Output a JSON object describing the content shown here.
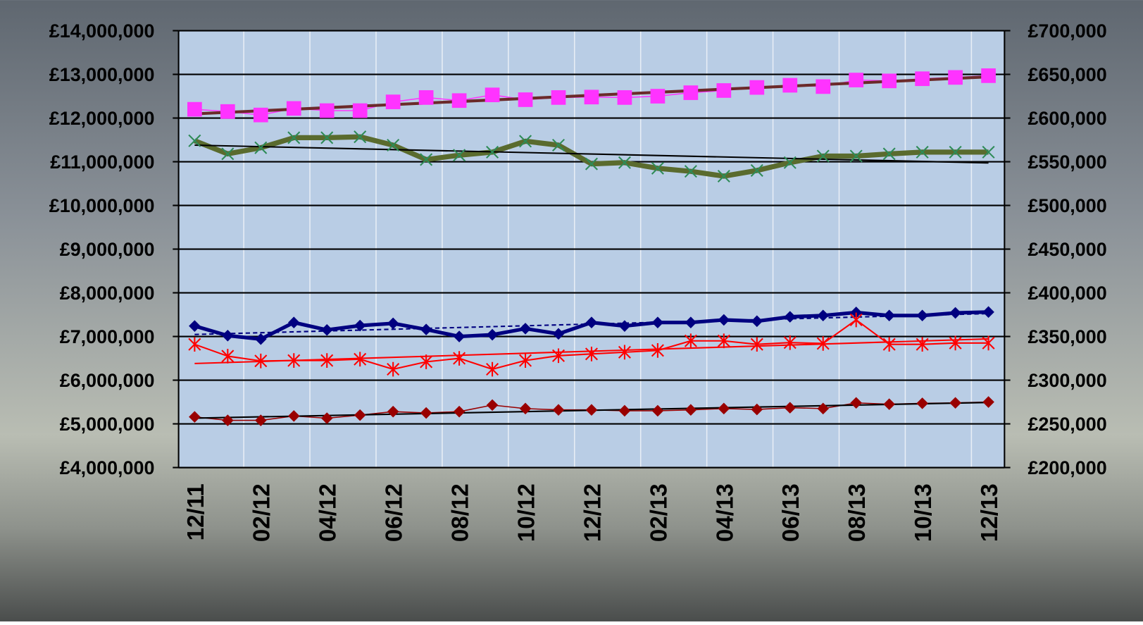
{
  "chart_data": {
    "type": "line",
    "categories": [
      "12/11",
      null,
      "02/12",
      null,
      "04/12",
      null,
      "06/12",
      null,
      "08/12",
      null,
      "10/12",
      null,
      "12/12",
      null,
      "02/13",
      null,
      "04/13",
      null,
      "06/13",
      null,
      "08/13",
      null,
      "10/13",
      null,
      "12/13"
    ],
    "ylim": [
      4000000,
      14000000
    ],
    "yticks": [
      {
        "value": 4000000,
        "label": "£4,000,000"
      },
      {
        "value": 5000000,
        "label": "£5,000,000"
      },
      {
        "value": 6000000,
        "label": "£6,000,000"
      },
      {
        "value": 7000000,
        "label": "£7,000,000"
      },
      {
        "value": 8000000,
        "label": "£8,000,000"
      },
      {
        "value": 9000000,
        "label": "£9,000,000"
      },
      {
        "value": 10000000,
        "label": "£10,000,000"
      },
      {
        "value": 11000000,
        "label": "£11,000,000"
      },
      {
        "value": 12000000,
        "label": "£12,000,000"
      },
      {
        "value": 13000000,
        "label": "£13,000,000"
      },
      {
        "value": 14000000,
        "label": "£14,000,000"
      }
    ],
    "y2lim": [
      200000,
      700000
    ],
    "y2ticks": [
      {
        "value": 200000,
        "label": "£200,000"
      },
      {
        "value": 250000,
        "label": "£250,000"
      },
      {
        "value": 300000,
        "label": "£300,000"
      },
      {
        "value": 350000,
        "label": "£350,000"
      },
      {
        "value": 400000,
        "label": "£400,000"
      },
      {
        "value": 450000,
        "label": "£450,000"
      },
      {
        "value": 500000,
        "label": "£500,000"
      },
      {
        "value": 550000,
        "label": "£550,000"
      },
      {
        "value": 600000,
        "label": "£600,000"
      },
      {
        "value": 650000,
        "label": "£650,000"
      },
      {
        "value": 700000,
        "label": "£700,000"
      }
    ],
    "grid": true,
    "series": [
      {
        "color": "#ff33ff",
        "marker": "square",
        "trendline": {
          "color": "#6b2a2a",
          "style": "solid"
        },
        "values": [
          12200000,
          12150000,
          12070000,
          12220000,
          12170000,
          12170000,
          12370000,
          12470000,
          12400000,
          12530000,
          12420000,
          12470000,
          12480000,
          12470000,
          12500000,
          12580000,
          12630000,
          12700000,
          12750000,
          12720000,
          12870000,
          12850000,
          12900000,
          12930000,
          12970000
        ]
      },
      {
        "color": "#5a6b2e",
        "marker": "cross",
        "trendline": {
          "color": "#000000",
          "style": "solid"
        },
        "values": [
          11480000,
          11180000,
          11320000,
          11550000,
          11550000,
          11570000,
          11380000,
          11050000,
          11150000,
          11220000,
          11470000,
          11380000,
          10950000,
          10980000,
          10850000,
          10780000,
          10670000,
          10800000,
          10980000,
          11130000,
          11130000,
          11180000,
          11220000,
          11220000,
          11220000
        ]
      },
      {
        "color": "#000080",
        "marker": "diamond",
        "axis": "y2",
        "trendline": {
          "color": "#000080",
          "style": "dashed"
        },
        "values": [
          362000,
          351000,
          347000,
          366000,
          357500,
          362500,
          365000,
          358000,
          350000,
          352000,
          359000,
          353000,
          366000,
          362000,
          366000,
          366000,
          369000,
          367500,
          372500,
          374000,
          377500,
          374000,
          374000,
          377000,
          378000
        ]
      },
      {
        "color": "#ff0000",
        "marker": "asterisk",
        "axis": "y2",
        "trendline": {
          "color": "#ff0000",
          "style": "solid"
        },
        "values": [
          341000,
          327500,
          322000,
          322500,
          322500,
          324000,
          312500,
          321000,
          325000,
          312500,
          322500,
          328000,
          330000,
          332000,
          334000,
          345000,
          345000,
          341000,
          343000,
          342000,
          369000,
          341000,
          341000,
          342500,
          342500
        ]
      },
      {
        "color": "#990000",
        "marker": "diamond",
        "axis": "y2",
        "trendline": {
          "color": "#000000",
          "style": "solid"
        },
        "values": [
          258000,
          254000,
          254000,
          259000,
          256500,
          260000,
          264000,
          262500,
          264000,
          271500,
          267500,
          266000,
          266000,
          265000,
          265000,
          266000,
          267500,
          266500,
          268500,
          267500,
          274000,
          272500,
          273500,
          274000,
          275000
        ]
      }
    ]
  }
}
